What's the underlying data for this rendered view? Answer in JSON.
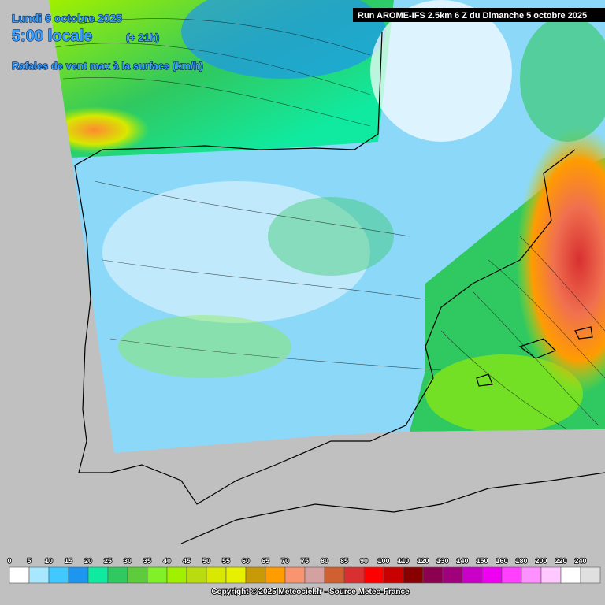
{
  "header": {
    "date": "Lundi 6 octobre 2025",
    "time": "5:00 locale",
    "lead": "(+ 21h)",
    "variable": "Rafales de vent max à la surface (km/h)"
  },
  "run": "Run AROME-IFS 2.5km 6 Z du Dimanche 5 octobre 2025",
  "legend": {
    "labels": [
      0,
      5,
      10,
      15,
      20,
      25,
      30,
      35,
      40,
      45,
      50,
      55,
      60,
      65,
      70,
      75,
      80,
      85,
      90,
      100,
      110,
      120,
      130,
      140,
      150,
      160,
      180,
      200,
      220,
      240
    ],
    "colors": [
      "#ffffff",
      "#a8e8ff",
      "#40c8ff",
      "#1e96f0",
      "#10eaa0",
      "#30c860",
      "#5ccc3a",
      "#80f028",
      "#a0f000",
      "#b8dc10",
      "#d8e800",
      "#e6f000",
      "#c89a08",
      "#ff9c00",
      "#f89470",
      "#d4a0a0",
      "#d06030",
      "#d83030",
      "#ff0000",
      "#c80000",
      "#880000",
      "#8c0050",
      "#a0007c",
      "#c800c8",
      "#f000f0",
      "#ff40ff",
      "#ff90ff",
      "#ffc8ff",
      "#ffffff",
      "#e0e0e0"
    ]
  },
  "copyright": "Copyright © 2025 Meteociel.fr - Source Meteo-France"
}
